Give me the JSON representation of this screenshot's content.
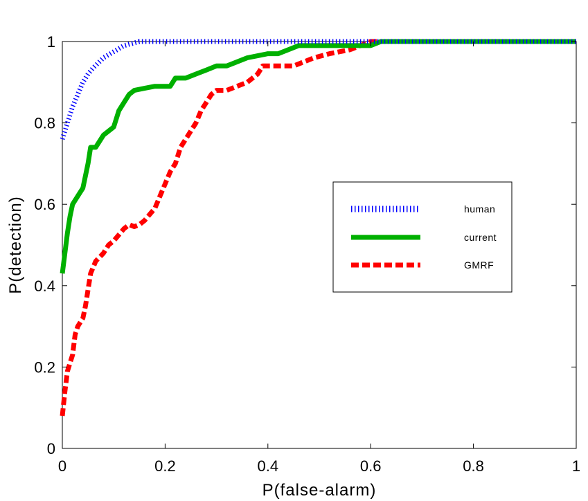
{
  "chart_data": {
    "type": "line",
    "title": "",
    "xlabel": "P(false-alarm)",
    "ylabel": "P(detection)",
    "xlim": [
      0,
      1
    ],
    "ylim": [
      0,
      1
    ],
    "xticks": [
      "0",
      "0.2",
      "0.4",
      "0.6",
      "0.8",
      "1"
    ],
    "yticks": [
      "0",
      "0.2",
      "0.4",
      "0.6",
      "0.8",
      "1"
    ],
    "grid": false,
    "legend_position": "right",
    "series": [
      {
        "name": "human",
        "color": "#0000ff",
        "style": "dotted",
        "points": [
          [
            0,
            0.76
          ],
          [
            0.005,
            0.78
          ],
          [
            0.01,
            0.8
          ],
          [
            0.02,
            0.84
          ],
          [
            0.03,
            0.87
          ],
          [
            0.04,
            0.9
          ],
          [
            0.05,
            0.92
          ],
          [
            0.06,
            0.935
          ],
          [
            0.08,
            0.96
          ],
          [
            0.1,
            0.975
          ],
          [
            0.12,
            0.99
          ],
          [
            0.15,
            1.0
          ],
          [
            1.0,
            1.0
          ]
        ]
      },
      {
        "name": "current",
        "color": "#00b000",
        "style": "solid",
        "points": [
          [
            0,
            0.43
          ],
          [
            0.005,
            0.48
          ],
          [
            0.01,
            0.53
          ],
          [
            0.015,
            0.57
          ],
          [
            0.02,
            0.6
          ],
          [
            0.03,
            0.62
          ],
          [
            0.04,
            0.64
          ],
          [
            0.05,
            0.7
          ],
          [
            0.055,
            0.74
          ],
          [
            0.065,
            0.74
          ],
          [
            0.08,
            0.77
          ],
          [
            0.09,
            0.78
          ],
          [
            0.1,
            0.79
          ],
          [
            0.11,
            0.83
          ],
          [
            0.12,
            0.85
          ],
          [
            0.13,
            0.87
          ],
          [
            0.14,
            0.88
          ],
          [
            0.16,
            0.885
          ],
          [
            0.18,
            0.89
          ],
          [
            0.2,
            0.89
          ],
          [
            0.21,
            0.89
          ],
          [
            0.22,
            0.91
          ],
          [
            0.24,
            0.91
          ],
          [
            0.26,
            0.92
          ],
          [
            0.28,
            0.93
          ],
          [
            0.3,
            0.94
          ],
          [
            0.32,
            0.94
          ],
          [
            0.34,
            0.95
          ],
          [
            0.36,
            0.96
          ],
          [
            0.38,
            0.965
          ],
          [
            0.4,
            0.97
          ],
          [
            0.42,
            0.97
          ],
          [
            0.44,
            0.98
          ],
          [
            0.46,
            0.99
          ],
          [
            0.5,
            0.99
          ],
          [
            0.55,
            0.99
          ],
          [
            0.6,
            0.99
          ],
          [
            0.62,
            1.0
          ],
          [
            1.0,
            1.0
          ]
        ]
      },
      {
        "name": "GMRF",
        "color": "#ff0000",
        "style": "dashed",
        "points": [
          [
            0,
            0.08
          ],
          [
            0.005,
            0.14
          ],
          [
            0.01,
            0.19
          ],
          [
            0.02,
            0.23
          ],
          [
            0.025,
            0.28
          ],
          [
            0.03,
            0.3
          ],
          [
            0.04,
            0.32
          ],
          [
            0.045,
            0.35
          ],
          [
            0.05,
            0.39
          ],
          [
            0.055,
            0.43
          ],
          [
            0.065,
            0.46
          ],
          [
            0.08,
            0.48
          ],
          [
            0.09,
            0.5
          ],
          [
            0.1,
            0.51
          ],
          [
            0.12,
            0.54
          ],
          [
            0.13,
            0.55
          ],
          [
            0.14,
            0.545
          ],
          [
            0.15,
            0.55
          ],
          [
            0.16,
            0.56
          ],
          [
            0.17,
            0.575
          ],
          [
            0.18,
            0.59
          ],
          [
            0.19,
            0.62
          ],
          [
            0.2,
            0.65
          ],
          [
            0.21,
            0.68
          ],
          [
            0.22,
            0.7
          ],
          [
            0.23,
            0.74
          ],
          [
            0.24,
            0.76
          ],
          [
            0.25,
            0.78
          ],
          [
            0.26,
            0.8
          ],
          [
            0.27,
            0.83
          ],
          [
            0.28,
            0.85
          ],
          [
            0.29,
            0.87
          ],
          [
            0.3,
            0.88
          ],
          [
            0.32,
            0.88
          ],
          [
            0.34,
            0.89
          ],
          [
            0.36,
            0.9
          ],
          [
            0.38,
            0.92
          ],
          [
            0.39,
            0.94
          ],
          [
            0.42,
            0.94
          ],
          [
            0.45,
            0.94
          ],
          [
            0.47,
            0.95
          ],
          [
            0.49,
            0.96
          ],
          [
            0.52,
            0.97
          ],
          [
            0.54,
            0.975
          ],
          [
            0.56,
            0.98
          ],
          [
            0.58,
            0.99
          ],
          [
            0.6,
            1.0
          ],
          [
            1.0,
            1.0
          ]
        ]
      }
    ]
  }
}
